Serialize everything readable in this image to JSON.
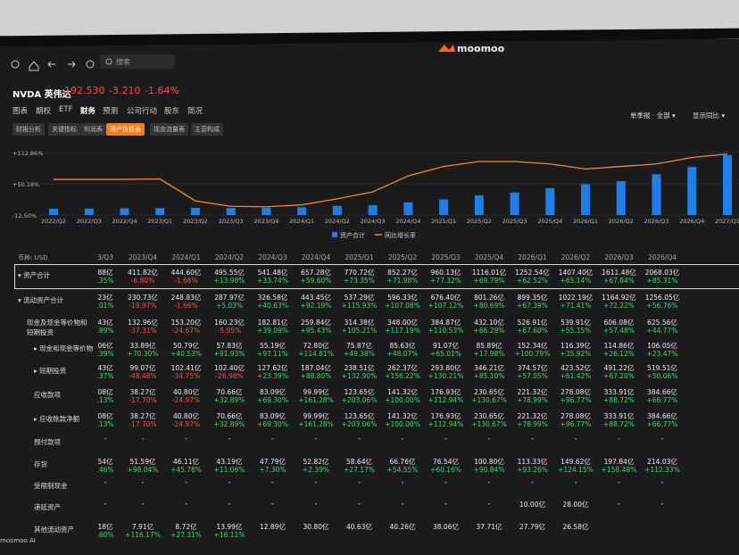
{
  "header": {
    "logo": "moomoo",
    "search": "搜索"
  },
  "stock": {
    "name": "NVDA 英伟达",
    "price": "192.530",
    "change": "-3.210",
    "pct": "-1.64%"
  },
  "tabs": [
    "图表",
    "期权",
    "ETF",
    "财务",
    "预测",
    "公司行动",
    "股东",
    "简况"
  ],
  "subtabs": [
    "财报分析",
    "关键指标",
    "利润表",
    "资产负债表",
    "现金流量表",
    "主营构成"
  ],
  "controls": [
    "单季报 · 全部 ▾",
    "显示同比 ▾"
  ],
  "chart": {
    "type": "bar",
    "categories": [
      "2022/Q2",
      "2022/Q3",
      "2022/Q4",
      "2023/Q1",
      "2023/Q2",
      "2023/Q3",
      "2023/Q4",
      "2024/Q1",
      "2024/Q2",
      "2024/Q3",
      "2024/Q4",
      "2025/Q1",
      "2025/Q2",
      "2025/Q3",
      "2025/Q4",
      "2026/Q1",
      "2026/Q2",
      "2026/Q3",
      "2026/Q4",
      "2027/Q1"
    ],
    "series": [
      {
        "name": "资产合计",
        "color": "#1f7fe6",
        "values": [
          265,
          270,
          280,
          290,
          300,
          290,
          300,
          320,
          380,
          410,
          530,
          650,
          820,
          940,
          1120,
          1290,
          1410,
          1700,
          2000,
          2500
        ]
      },
      {
        "name": "同比增长率",
        "color": "#f08a2c",
        "axis": "y",
        "type": "line",
        "values": [
          59,
          59,
          59,
          60,
          16,
          5,
          4,
          8,
          20,
          34,
          66,
          85,
          95,
          95,
          90,
          80,
          85,
          90,
          103,
          110
        ]
      }
    ],
    "ylim": [
      -12.5,
      112.86
    ],
    "yticks": [
      {
        "value": 112.86,
        "label": "+112.86%"
      },
      {
        "value": 50.18,
        "label": "+50.18%"
      },
      {
        "value": -12.5,
        "label": "-12.50%"
      }
    ],
    "y2lim": [
      0,
      2600
    ]
  },
  "table": {
    "currency": "币种: USD",
    "periods": [
      "3/Q3",
      "2023/Q4",
      "2024/Q1",
      "2024/Q2",
      "2024/Q3",
      "2024/Q4",
      "2025/Q1",
      "2025/Q2",
      "2025/Q3",
      "2025/Q4",
      "2026/Q1",
      "2026/Q2",
      "2026/Q3",
      "2026/Q4"
    ],
    "rows": [
      {
        "name": "▾ 资产合计",
        "cells": [
          [
            "88亿",
            ".35%"
          ],
          [
            "411.82亿",
            "-6.80%"
          ],
          [
            "444.60亿",
            "-1.66%"
          ],
          [
            "495.55亿",
            "+13.98%"
          ],
          [
            "541.48亿",
            "+33.74%"
          ],
          [
            "657.28亿",
            "+59.60%"
          ],
          [
            "770.72亿",
            "+73.35%"
          ],
          [
            "852.27亿",
            "+71.98%"
          ],
          [
            "960.13亿",
            "+77.32%"
          ],
          [
            "1116.01亿",
            "+69.79%"
          ],
          [
            "1252.54亿",
            "+62.52%"
          ],
          [
            "1407.40亿",
            "+65.14%"
          ],
          [
            "1611.48亿",
            "+67.84%"
          ],
          [
            "2068.03亿",
            "+85.31%"
          ]
        ]
      },
      {
        "name": "▾ 流动资产合计",
        "cells": [
          [
            "23亿",
            ".01%"
          ],
          [
            "230.73亿",
            "-19.97%"
          ],
          [
            "248.83亿",
            "-1.66%"
          ],
          [
            "287.97亿",
            "+5.03%"
          ],
          [
            "326.58亿",
            "+40.63%"
          ],
          [
            "443.45亿",
            "+92.19%"
          ],
          [
            "537.29亿",
            "+115.93%"
          ],
          [
            "596.33亿",
            "+107.08%"
          ],
          [
            "676.40亿",
            "+107.12%"
          ],
          [
            "801.26亿",
            "+80.69%"
          ],
          [
            "899.35亿",
            "+67.39%"
          ],
          [
            "1022.19亿",
            "+71.41%"
          ],
          [
            "1164.92亿",
            "+72.22%"
          ],
          [
            "1256.05亿",
            "+56.76%"
          ]
        ]
      },
      {
        "name": "现金及现金等价物和短期投资",
        "cells": [
          [
            "43亿",
            ".89%"
          ],
          [
            "132.96亿",
            "-37.31%"
          ],
          [
            "153.20亿",
            "-24.67%"
          ],
          [
            "160.23亿",
            "-5.95%"
          ],
          [
            "182.81亿",
            "+39.09%"
          ],
          [
            "259.84亿",
            "+95.43%"
          ],
          [
            "314.38亿",
            "+105.21%"
          ],
          [
            "348.00亿",
            "+117.19%"
          ],
          [
            "384.87亿",
            "+110.53%"
          ],
          [
            "432.10亿",
            "+66.29%"
          ],
          [
            "526.91亿",
            "+67.60%"
          ],
          [
            "539.91亿",
            "+55.15%"
          ],
          [
            "606.08亿",
            "+57.48%"
          ],
          [
            "625.56亿",
            "+44.77%"
          ]
        ]
      },
      {
        "name": "▸ 现金和现金等价物",
        "cells": [
          [
            "06亿",
            ".39%"
          ],
          [
            "33.89亿",
            "+70.30%"
          ],
          [
            "50.79亿",
            "+40.53%"
          ],
          [
            "57.83亿",
            "+91.93%"
          ],
          [
            "55.19亿",
            "+97.11%"
          ],
          [
            "72.80亿",
            "+114.81%"
          ],
          [
            "75.87亿",
            "+49.38%"
          ],
          [
            "85.63亿",
            "+48.07%"
          ],
          [
            "91.07亿",
            "+65.01%"
          ],
          [
            "85.89亿",
            "+17.98%"
          ],
          [
            "152.34亿",
            "+100.79%"
          ],
          [
            "116.39亿",
            "+35.92%"
          ],
          [
            "114.86亿",
            "+26.12%"
          ],
          [
            "106.05亿",
            "+23.47%"
          ]
        ]
      },
      {
        "name": "▸ 短期投资",
        "cells": [
          [
            "43亿",
            ".37%"
          ],
          [
            "99.07亿",
            "-48.48%"
          ],
          [
            "102.41亿",
            "-34.75%"
          ],
          [
            "102.40亿",
            "-26.98%"
          ],
          [
            "127.62亿",
            "+23.39%"
          ],
          [
            "187.04亿",
            "+88.80%"
          ],
          [
            "238.51亿",
            "+132.90%"
          ],
          [
            "262.37亿",
            "+156.22%"
          ],
          [
            "293.80亿",
            "+130.21%"
          ],
          [
            "346.21亿",
            "+85.10%"
          ],
          [
            "374.57亿",
            "+57.05%"
          ],
          [
            "423.52亿",
            "+61.42%"
          ],
          [
            "491.22亿",
            "+67.20%"
          ],
          [
            "519.51亿",
            "+50.06%"
          ]
        ]
      },
      {
        "name": "应收款项",
        "cells": [
          [
            "08亿",
            ".13%"
          ],
          [
            "38.27亿",
            "-17.70%"
          ],
          [
            "40.80亿",
            "-24.97%"
          ],
          [
            "70.66亿",
            "+32.89%"
          ],
          [
            "83.09亿",
            "+69.30%"
          ],
          [
            "99.99亿",
            "+161.28%"
          ],
          [
            "123.65亿",
            "+203.06%"
          ],
          [
            "141.32亿",
            "+100.00%"
          ],
          [
            "176.93亿",
            "+112.94%"
          ],
          [
            "230.65亿",
            "+130.67%"
          ],
          [
            "221.32亿",
            "+78.99%"
          ],
          [
            "278.08亿",
            "+96.77%"
          ],
          [
            "333.91亿",
            "+88.72%"
          ],
          [
            "384.66亿",
            "+66.77%"
          ]
        ]
      },
      {
        "name": "▸ 应收账款净额",
        "cells": [
          [
            "08亿",
            ".13%"
          ],
          [
            "38.27亿",
            "-17.70%"
          ],
          [
            "40.80亿",
            "-24.97%"
          ],
          [
            "70.66亿",
            "+32.89%"
          ],
          [
            "83.09亿",
            "+69.30%"
          ],
          [
            "99.99亿",
            "+161.28%"
          ],
          [
            "123.65亿",
            "+203.06%"
          ],
          [
            "141.32亿",
            "+100.00%"
          ],
          [
            "176.93亿",
            "+112.94%"
          ],
          [
            "230.65亿",
            "+130.67%"
          ],
          [
            "221.32亿",
            "+78.99%"
          ],
          [
            "278.08亿",
            "+96.77%"
          ],
          [
            "333.91亿",
            "+88.72%"
          ],
          [
            "384.66亿",
            "+66.77%"
          ]
        ]
      },
      {
        "name": "预付款项",
        "cells": [
          [
            "-"
          ],
          [
            "-"
          ],
          [
            "-"
          ],
          [
            "-"
          ],
          [
            "-"
          ],
          [
            "-"
          ],
          [
            "-"
          ],
          [
            "-"
          ],
          [
            "-"
          ],
          [
            "-"
          ],
          [
            "-"
          ],
          [
            "-"
          ],
          [
            "-"
          ],
          [
            "-"
          ]
        ]
      },
      {
        "name": "存货",
        "cells": [
          [
            "54亿",
            ".46%"
          ],
          [
            "51.59亿",
            "+98.04%"
          ],
          [
            "46.11亿",
            "+45.78%"
          ],
          [
            "43.19亿",
            "+11.06%"
          ],
          [
            "47.79亿",
            "+7.30%"
          ],
          [
            "52.82亿",
            "+2.39%"
          ],
          [
            "58.64亿",
            "+27.17%"
          ],
          [
            "66.76亿",
            "+54.55%"
          ],
          [
            "76.54亿",
            "+60.16%"
          ],
          [
            "100.80亿",
            "+90.84%"
          ],
          [
            "113.33亿",
            "+93.26%"
          ],
          [
            "149.62亿",
            "+124.15%"
          ],
          [
            "197.84亿",
            "+158.48%"
          ],
          [
            "214.03亿",
            "+112.33%"
          ]
        ]
      },
      {
        "name": "受限制现金",
        "cells": [
          [
            "-"
          ],
          [
            "-"
          ],
          [
            "-"
          ],
          [
            "-"
          ],
          [
            "-"
          ],
          [
            "-"
          ],
          [
            "-"
          ],
          [
            "-"
          ],
          [
            "-"
          ],
          [
            "-"
          ],
          [
            "-"
          ],
          [
            "-"
          ],
          [
            "-"
          ],
          [
            "-"
          ]
        ]
      },
      {
        "name": "递延资产",
        "cells": [
          [
            "-"
          ],
          [
            "-"
          ],
          [
            "-"
          ],
          [
            "-"
          ],
          [
            "-"
          ],
          [
            "-"
          ],
          [
            "-"
          ],
          [
            "-"
          ],
          [
            "-"
          ],
          [
            "-"
          ],
          [
            "10.00亿"
          ],
          [
            "28.00亿"
          ],
          [
            "-"
          ],
          [
            "-"
          ]
        ]
      },
      {
        "name": "其他流动资产",
        "cells": [
          [
            "18亿",
            ".60%"
          ],
          [
            "7.91亿",
            "+116.17%"
          ],
          [
            "8.72亿",
            "+27.31%"
          ],
          [
            "13.99亿",
            "+16.11%"
          ],
          [
            "12.89亿"
          ],
          [
            "30.80亿"
          ],
          [
            "40.63亿"
          ],
          [
            "40.26亿"
          ],
          [
            "38.06亿"
          ],
          [
            "37.71亿"
          ],
          [
            "27.79亿"
          ],
          [
            "26.58亿"
          ]
        ]
      }
    ]
  },
  "footer": {
    "ai": "moomoo AI"
  }
}
